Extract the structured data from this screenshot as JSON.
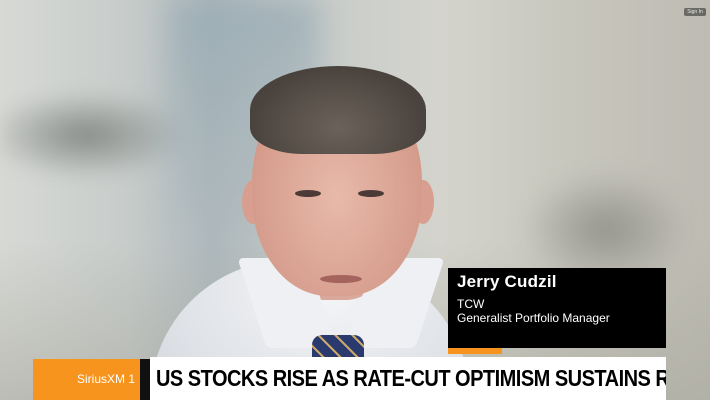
{
  "video": {
    "corner_badge": "Sign In"
  },
  "lower_third": {
    "name": "Jerry Cudzil",
    "organization": "TCW",
    "title": "Generalist Portfolio Manager"
  },
  "ticker": {
    "brand": "SiriusXM 1",
    "headline": "US STOCKS RISE AS RATE-CUT OPTIMISM SUSTAINS RALLY"
  },
  "colors": {
    "accent": "#f7941e",
    "nameplate_bg": "#000000",
    "headline_bg": "#ffffff"
  }
}
